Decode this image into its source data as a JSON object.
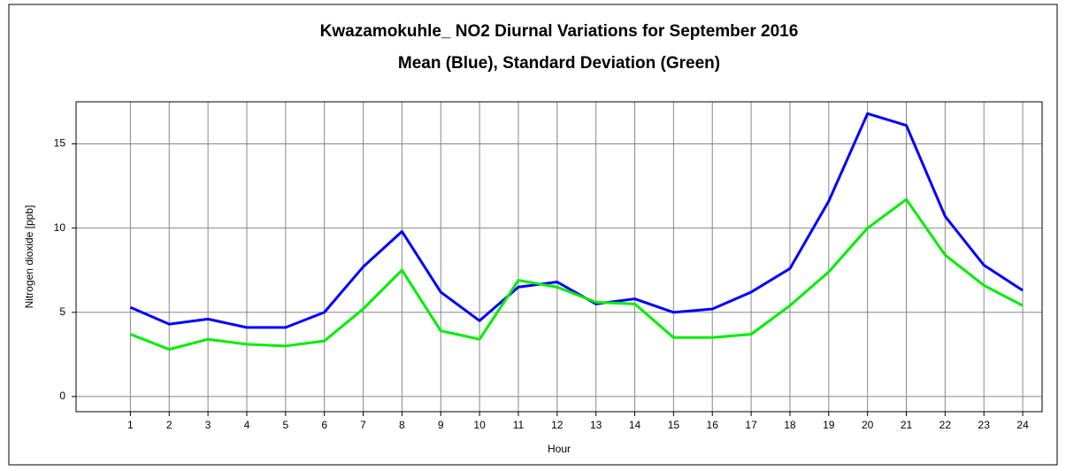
{
  "chart_data": {
    "type": "line",
    "title": "Kwazamokuhle_ NO2 Diurnal Variations for September 2016",
    "subtitle": "Mean (Blue), Standard Deviation (Green)",
    "x_label": "Hour",
    "y_label": "Nitrogen dioxide  [ppb]",
    "x": [
      1,
      2,
      3,
      4,
      5,
      6,
      7,
      8,
      9,
      10,
      11,
      12,
      13,
      14,
      15,
      16,
      17,
      18,
      19,
      20,
      21,
      22,
      23,
      24
    ],
    "series": [
      {
        "color": "#0000ff",
        "values": [
          5.3,
          4.3,
          4.6,
          4.1,
          4.1,
          5.0,
          7.7,
          9.8,
          6.2,
          4.5,
          6.5,
          6.8,
          5.5,
          5.8,
          5.0,
          5.2,
          6.2,
          7.6,
          11.6,
          16.8,
          16.1,
          10.7,
          7.8,
          6.3
        ]
      },
      {
        "color": "#00ee00",
        "values": [
          3.7,
          2.8,
          3.4,
          3.1,
          3.0,
          3.3,
          5.2,
          7.5,
          3.9,
          3.4,
          6.9,
          6.5,
          5.6,
          5.5,
          3.5,
          3.5,
          3.7,
          5.4,
          7.4,
          10.0,
          11.7,
          8.4,
          6.6,
          5.4
        ]
      }
    ],
    "xlim": [
      -0.4,
      24.5
    ],
    "xticks": [
      1,
      2,
      3,
      4,
      5,
      6,
      7,
      8,
      9,
      10,
      11,
      12,
      13,
      14,
      15,
      16,
      17,
      18,
      19,
      20,
      21,
      22,
      23,
      24
    ],
    "ylim": [
      -0.9,
      17.5
    ],
    "yticks": [
      0,
      5,
      10,
      15
    ],
    "grid": true
  }
}
